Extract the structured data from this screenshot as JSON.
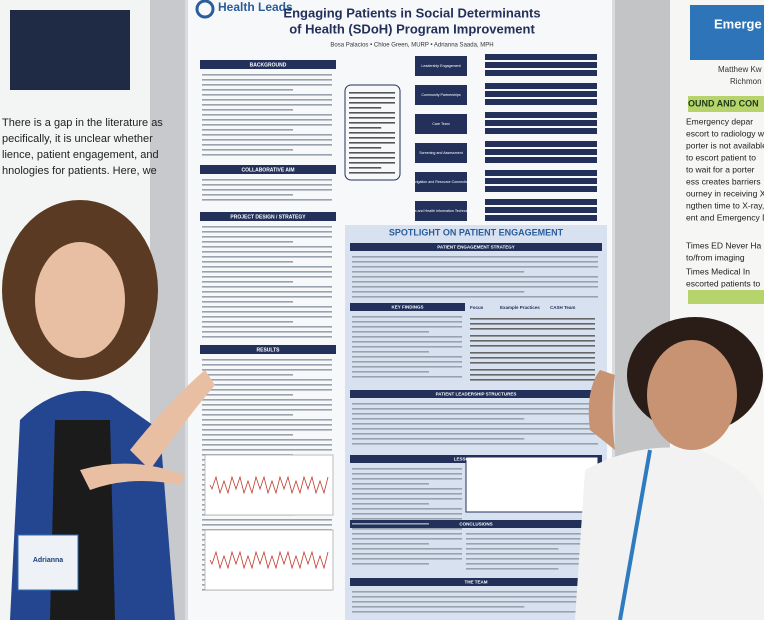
{
  "poster": {
    "logo": "Health Leads",
    "title_line1": "Engaging Patients in Social Determinants",
    "title_line2": "of Health (SDoH) Program Improvement",
    "authors": "Bosa Palacios • Chloe Green, MURP • Adrianna Saada, MPH",
    "left_sections": [
      "BACKGROUND",
      "COLLABORATIVE AIM",
      "PROJECT DESIGN / STRATEGY",
      "RESULTS"
    ],
    "drivers": [
      "Leadership Engagement",
      "Community Partnerships",
      "Care Team",
      "Screening and Assessment",
      "Navigation and Resource Connections",
      "Data and Health Information Technology"
    ],
    "spotlight": "SPOTLIGHT ON PATIENT ENGAGEMENT",
    "spotlight_sections": [
      "PATIENT ENGAGEMENT STRATEGY",
      "KEY FINDINGS",
      "PATIENT LEADERSHIP STRUCTURES",
      "LESSONS LEARNED",
      "CONCLUSIONS",
      "THE TEAM"
    ],
    "table_header": [
      "Focus",
      "Example Practices",
      "CASH Team"
    ]
  },
  "left_poster": {
    "lines": [
      "There is a gap in the literature as",
      "pecifically, it is unclear whether",
      "lience, patient engagement, and",
      "hnologies for patients. Here, we"
    ]
  },
  "right_poster": {
    "title": "Emerge",
    "authors": [
      "Matthew Kw",
      "Richmon"
    ],
    "section": "OUND AND CON",
    "lines": [
      "Emergency depar",
      "escort to radiology w",
      "porter is not available",
      "to escort patient to",
      "to wait for a porter",
      "ess creates barriers",
      "ourney in receiving X-ra",
      "ngthen time to X-ray,",
      "ent and Emergency De",
      "Times  ED  Never  Ha",
      "to/from imaging",
      "Times  Medical  In",
      "escorted patients to"
    ]
  },
  "badge": {
    "name": "Adrianna"
  }
}
